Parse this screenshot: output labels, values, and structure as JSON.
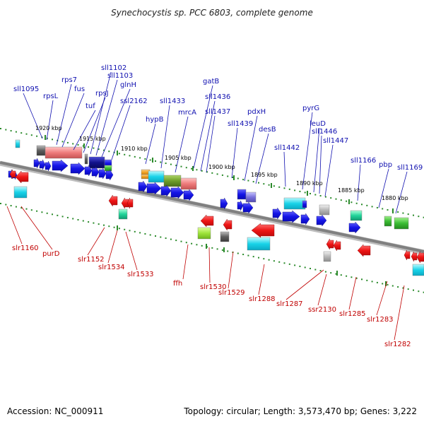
{
  "title": "Synechocystis sp. PCC 6803, complete genome",
  "footer": {
    "accession": "Accession: NC_000911",
    "summary": "Topology: circular; Length: 3,573,470 bp; Genes: 3,222"
  },
  "kbp_ticks": [
    "1920 kbp",
    "1915 kbp",
    "1910 kbp",
    "1905 kbp",
    "1900 kbp",
    "1895 kbp",
    "1890 kbp",
    "1885 kbp",
    "1880 kbp"
  ],
  "forward_genes": [
    "sll1095",
    "rpsL",
    "rps7",
    "fus",
    "tuf",
    "rpsJ",
    "sll1102",
    "sll1103",
    "glnH",
    "ssl2162",
    "hypB",
    "sll1433",
    "mrcA",
    "gatB",
    "sll1436",
    "sll1437",
    "sll1439",
    "pdxH",
    "desB",
    "sll1442",
    "pyrG",
    "leuD",
    "sll1446",
    "sll1447",
    "sll1166",
    "pbp",
    "sll1169"
  ],
  "reverse_genes": [
    "slr1160",
    "purD",
    "slr1152",
    "slr1534",
    "slr1533",
    "ffh",
    "slr1530",
    "slr1529",
    "slr1288",
    "slr1287",
    "ssr2130",
    "slr1285",
    "slr1283",
    "slr1282"
  ],
  "colors": {
    "forward_label": "#1010b0",
    "reverse_label": "#c00000",
    "forward_arrow": "#1a1ae0",
    "reverse_arrow": "#e01010",
    "backbone": "#808080",
    "tick": "#2a8a2a"
  }
}
